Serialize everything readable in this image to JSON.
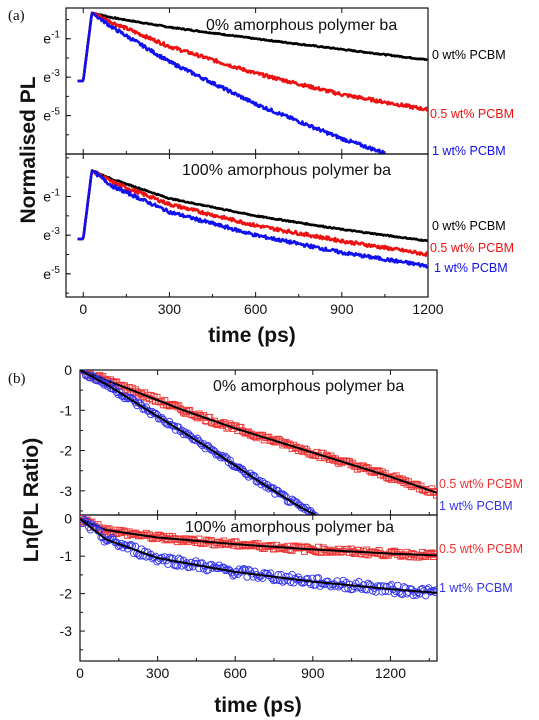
{
  "chart_data": [
    {
      "type": "line",
      "panel_label": "(a)",
      "subplot_title": "0% amorphous polymer ba",
      "xlabel": "time (ps)",
      "ylabel": "Normalised PL",
      "y_scale": "ln",
      "xlim": [
        -60,
        1200
      ],
      "ylim_ln": [
        -7,
        0.6
      ],
      "x_ticks": [
        "0",
        "300",
        "600",
        "900",
        "1200"
      ],
      "y_ticks": [
        "e-1",
        "e-3",
        "e-5"
      ],
      "legend_placement": "right, outside plot at line ends",
      "series": [
        {
          "name": "0 wt% PCBM",
          "color": "#000000",
          "x": [
            0,
            30,
            100,
            300,
            600,
            900,
            1200
          ],
          "ln_y": [
            -3.2,
            0.35,
            0.1,
            -0.4,
            -1.0,
            -1.55,
            -2.1
          ]
        },
        {
          "name": "0.5 wt% PCBM",
          "color": "#ee1111",
          "x": [
            0,
            30,
            100,
            300,
            600,
            900,
            1200
          ],
          "ln_y": [
            -3.2,
            0.35,
            -0.15,
            -1.4,
            -2.8,
            -3.9,
            -4.7
          ]
        },
        {
          "name": "1 wt% PCBM",
          "color": "#1111ee",
          "x": [
            0,
            30,
            100,
            300,
            600,
            900,
            1060
          ],
          "ln_y": [
            -3.2,
            0.35,
            -0.4,
            -2.2,
            -4.4,
            -6.2,
            -7.0
          ]
        }
      ]
    },
    {
      "type": "line",
      "panel_label": "",
      "subplot_title": "100% amorphous polymer ba",
      "xlabel": "time (ps)",
      "ylabel": "Normalised PL",
      "y_scale": "ln",
      "xlim": [
        -60,
        1200
      ],
      "ylim_ln": [
        -6.2,
        1.2
      ],
      "x_ticks": [
        "0",
        "300",
        "600",
        "900",
        "1200"
      ],
      "y_ticks": [
        "e-1",
        "e-3",
        "e-5"
      ],
      "legend_placement": "right, outside plot at line ends",
      "series": [
        {
          "name": "0 wt% PCBM",
          "color": "#000000",
          "x": [
            0,
            30,
            100,
            300,
            600,
            900,
            1200
          ],
          "ln_y": [
            -3.2,
            0.35,
            -0.1,
            -1.1,
            -2.0,
            -2.7,
            -3.3
          ]
        },
        {
          "name": "0.5 wt% PCBM",
          "color": "#ee1111",
          "x": [
            0,
            30,
            100,
            300,
            600,
            900,
            1200
          ],
          "ln_y": [
            -3.2,
            0.35,
            -0.25,
            -1.4,
            -2.5,
            -3.3,
            -4.0
          ]
        },
        {
          "name": "1 wt% PCBM",
          "color": "#1111ee",
          "x": [
            0,
            30,
            100,
            300,
            600,
            900,
            1200
          ],
          "ln_y": [
            -3.2,
            0.35,
            -0.45,
            -1.8,
            -3.0,
            -3.9,
            -4.6
          ]
        }
      ]
    },
    {
      "type": "scatter",
      "panel_label": "(b)",
      "subplot_title": "0% amorphous polymer ba",
      "xlabel": "time (ps)",
      "ylabel": "Ln(PL Ratio)",
      "xlim": [
        0,
        1380
      ],
      "ylim": [
        -3.6,
        0
      ],
      "x_ticks": [
        "0",
        "300",
        "600",
        "900",
        "1200"
      ],
      "y_ticks": [
        "0",
        "-1",
        "-2",
        "-3"
      ],
      "series": [
        {
          "name": "0.5 wt% PCBM",
          "color": "#ee3333",
          "marker": "square",
          "fit_color": "#000000",
          "x": [
            0,
            200,
            400,
            600,
            800,
            1000,
            1200,
            1380
          ],
          "y": [
            0,
            -0.5,
            -1.0,
            -1.45,
            -1.85,
            -2.25,
            -2.65,
            -3.05
          ]
        },
        {
          "name": "1 wt% PCBM",
          "color": "#3333ee",
          "marker": "circle",
          "fit_color": "#000000",
          "x": [
            0,
            100,
            300,
            500,
            700,
            850,
            910
          ],
          "y": [
            0,
            -0.35,
            -1.15,
            -1.95,
            -2.8,
            -3.4,
            -3.6
          ]
        }
      ]
    },
    {
      "type": "scatter",
      "panel_label": "",
      "subplot_title": "100% amorphous polymer ba",
      "xlabel": "time (ps)",
      "ylabel": "Ln(PL Ratio)",
      "xlim": [
        0,
        1380
      ],
      "ylim": [
        -3.8,
        0.1
      ],
      "x_ticks": [
        "0",
        "300",
        "600",
        "900",
        "1200"
      ],
      "y_ticks": [
        "0",
        "-1",
        "-2",
        "-3"
      ],
      "series": [
        {
          "name": "0.5 wt% PCBM",
          "color": "#ee3333",
          "marker": "square",
          "fit_color": "#000000",
          "x": [
            0,
            100,
            300,
            600,
            900,
            1200,
            1380
          ],
          "y": [
            0,
            -0.3,
            -0.5,
            -0.68,
            -0.82,
            -0.93,
            -0.98
          ]
        },
        {
          "name": "1 wt% PCBM",
          "color": "#3333ee",
          "marker": "circle",
          "fit_color": "#000000",
          "x": [
            0,
            100,
            300,
            600,
            900,
            1200,
            1380
          ],
          "y": [
            0,
            -0.55,
            -1.05,
            -1.42,
            -1.68,
            -1.88,
            -1.98
          ]
        }
      ]
    }
  ]
}
